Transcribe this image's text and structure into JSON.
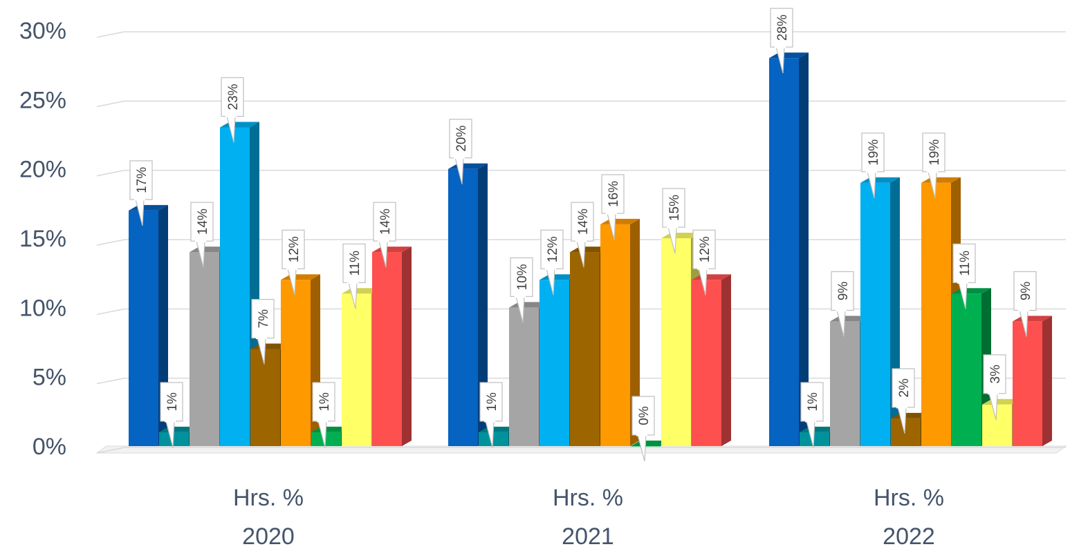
{
  "chart_data": {
    "type": "bar",
    "title": "",
    "xlabel": "",
    "ylabel": "",
    "ylim": [
      0,
      30
    ],
    "yticks": [
      "0%",
      "5%",
      "10%",
      "15%",
      "20%",
      "25%",
      "30%"
    ],
    "categories": [
      [
        "Hrs. %",
        "2020"
      ],
      [
        "Hrs. %",
        "2021"
      ],
      [
        "Hrs. %",
        "2022"
      ]
    ],
    "grid": true,
    "legend": "none",
    "series": [
      {
        "color": "#0563c1",
        "values": [
          17,
          20,
          28
        ],
        "labels": [
          "17%",
          "20%",
          "28%"
        ]
      },
      {
        "color": "#00929c",
        "values": [
          1,
          1,
          1
        ],
        "labels": [
          "1%",
          "1%",
          "1%"
        ]
      },
      {
        "color": "#a5a5a5",
        "values": [
          14,
          10,
          9
        ],
        "labels": [
          "14%",
          "10%",
          "9%"
        ]
      },
      {
        "color": "#00b0f0",
        "values": [
          23,
          12,
          19
        ],
        "labels": [
          "23%",
          "12%",
          "19%"
        ]
      },
      {
        "color": "#9c6500",
        "values": [
          7,
          14,
          2
        ],
        "labels": [
          "7%",
          "14%",
          "2%"
        ]
      },
      {
        "color": "#ff9900",
        "values": [
          12,
          16,
          19
        ],
        "labels": [
          "12%",
          "16%",
          "19%"
        ]
      },
      {
        "color": "#00b050",
        "values": [
          1,
          0,
          11
        ],
        "labels": [
          "1%",
          "0%",
          "11%"
        ]
      },
      {
        "color": "#ffff66",
        "values": [
          11,
          15,
          3
        ],
        "labels": [
          "11%",
          "15%",
          "3%"
        ]
      },
      {
        "color": "#ff5050",
        "values": [
          14,
          12,
          9
        ],
        "labels": [
          "14%",
          "12%",
          "9%"
        ]
      }
    ]
  }
}
